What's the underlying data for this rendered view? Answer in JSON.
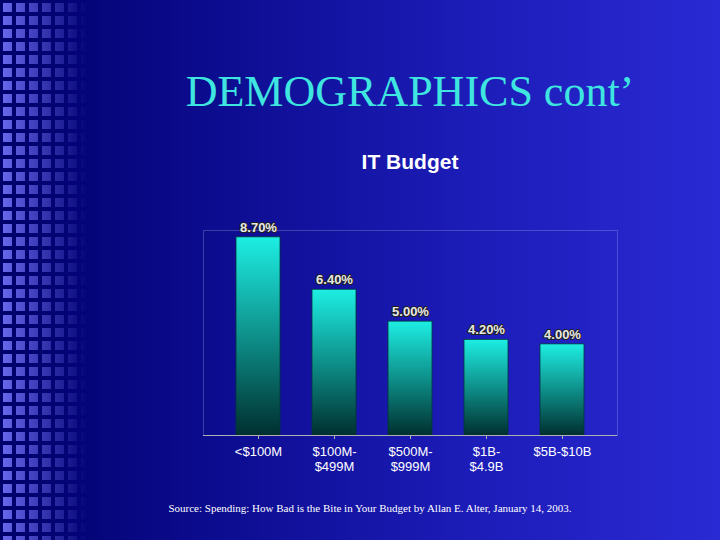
{
  "slide": {
    "title": "DEMOGRAPHICS cont’",
    "source": "Source: Spending: How Bad is the Bite in Your Budget by Allan E. Alter, January 14, 2003."
  },
  "chart_data": {
    "type": "bar",
    "title": "IT Budget",
    "categories": [
      "<$100M",
      "$100M-\n$499M",
      "$500M-\n$999M",
      "$1B-\n$4.9B",
      "$5B-$10B"
    ],
    "values": [
      8.7,
      6.4,
      5.0,
      4.2,
      4.0
    ],
    "value_labels": [
      "8.70%",
      "6.40%",
      "5.00%",
      "4.20%",
      "4.00%"
    ],
    "data_labels": true,
    "color": "#1ad6cc",
    "ylim": [
      0,
      9
    ],
    "tick_labels": "x",
    "grid": false
  }
}
